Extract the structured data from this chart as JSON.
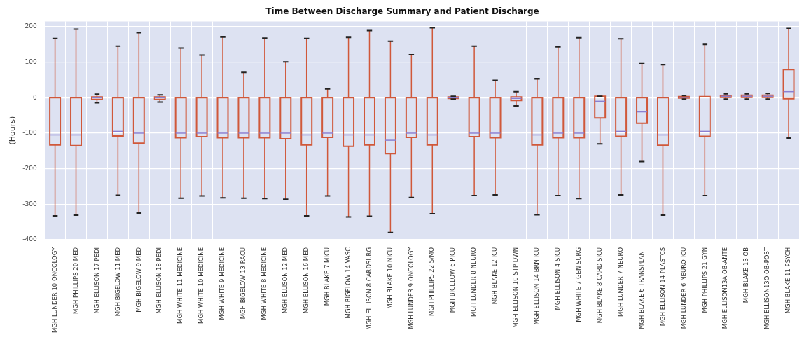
{
  "chart_data": {
    "type": "box",
    "title": "Time Between Discharge Summary and Patient Discharge",
    "ylabel": "(Hours)",
    "categories": [
      "MGH LUNDER 10 ONCOLOGY",
      "MGH PHILLIPS 20 MED",
      "MGH ELLISON 17 PEDI",
      "MGH BIGELOW 11 MED",
      "MGH BIGELOW 9 MED",
      "MGH ELLISON 18 PEDI",
      "MGH WHITE 11 MEDICINE",
      "MGH WHITE 10 MEDICINE",
      "MGH WHITE 9 MEDICINE",
      "MGH BIGELOW 13 RACU",
      "MGH WHITE 8 MEDICINE",
      "MGH ELLISON 12 MED",
      "MGH ELLISON 16 MED",
      "MGH BLAKE 7 MICU",
      "MGH BIGELOW 14 VASC",
      "MGH ELLISON 8 CARDSURG",
      "MGH BLAKE 10 NICU",
      "MGH LUNDER 9 ONCOLOGY",
      "MGH PHILLIPS 22 S/MO",
      "MGH BIGELOW 6 PICU",
      "MGH LUNDER 8 NEURO",
      "MGH BLAKE 12 ICU",
      "MGH ELLISON 10 STP DWN",
      "MGH ELLISON 14 BRN ICU",
      "MGH ELLISON 4 SICU",
      "MGH WHITE 7 GEN SURG",
      "MGH BLAKE 8 CARD SICU",
      "MGH LUNDER 7 NEURO",
      "MGH BLAKE 6 TRANSPLANT",
      "MGH ELLISON 14 PLASTCS",
      "MGH LUNDER 6 NEURO ICU",
      "MGH PHILLIPS 21 GYN",
      "MGH ELLISON13A OB-ANTE",
      "MGH BLAKE 13 OB",
      "MGH ELLISON13O OB-POST",
      "MGH BLAKE 11 PSYCH"
    ],
    "boxes": [
      {
        "low": -333,
        "q1": -133,
        "median": -105,
        "q3": 0,
        "high": 167
      },
      {
        "low": -331,
        "q1": -135,
        "median": -105,
        "q3": 0,
        "high": 193
      },
      {
        "low": -14,
        "q1": -5,
        "median": 0,
        "q3": 2,
        "high": 10
      },
      {
        "low": -275,
        "q1": -108,
        "median": -95,
        "q3": 0,
        "high": 145
      },
      {
        "low": -325,
        "q1": -128,
        "median": -100,
        "q3": 0,
        "high": 183
      },
      {
        "low": -12,
        "q1": -5,
        "median": 0,
        "q3": 2,
        "high": 8
      },
      {
        "low": -283,
        "q1": -113,
        "median": -100,
        "q3": 0,
        "high": 140
      },
      {
        "low": -277,
        "q1": -110,
        "median": -100,
        "q3": 0,
        "high": 120
      },
      {
        "low": -282,
        "q1": -113,
        "median": -100,
        "q3": 0,
        "high": 171
      },
      {
        "low": -283,
        "q1": -113,
        "median": -100,
        "q3": 0,
        "high": 71
      },
      {
        "low": -284,
        "q1": -113,
        "median": -100,
        "q3": 0,
        "high": 168
      },
      {
        "low": -286,
        "q1": -116,
        "median": -100,
        "q3": 0,
        "high": 101
      },
      {
        "low": -333,
        "q1": -133,
        "median": -105,
        "q3": 0,
        "high": 167
      },
      {
        "low": -277,
        "q1": -112,
        "median": -100,
        "q3": 0,
        "high": 25
      },
      {
        "low": -336,
        "q1": -137,
        "median": -105,
        "q3": 0,
        "high": 170
      },
      {
        "low": -334,
        "q1": -133,
        "median": -105,
        "q3": 0,
        "high": 189
      },
      {
        "low": -380,
        "q1": -158,
        "median": -120,
        "q3": 0,
        "high": 159
      },
      {
        "low": -281,
        "q1": -112,
        "median": -100,
        "q3": 0,
        "high": 121
      },
      {
        "low": -327,
        "q1": -133,
        "median": -105,
        "q3": 0,
        "high": 197
      },
      {
        "low": -4,
        "q1": -2,
        "median": 0,
        "q3": 2,
        "high": 4
      },
      {
        "low": -276,
        "q1": -110,
        "median": -100,
        "q3": 0,
        "high": 145
      },
      {
        "low": -274,
        "q1": -113,
        "median": -100,
        "q3": 0,
        "high": 49
      },
      {
        "low": -23,
        "q1": -8,
        "median": -2,
        "q3": 2,
        "high": 17
      },
      {
        "low": -330,
        "q1": -133,
        "median": -105,
        "q3": 0,
        "high": 53
      },
      {
        "low": -276,
        "q1": -113,
        "median": -100,
        "q3": 0,
        "high": 143
      },
      {
        "low": -284,
        "q1": -113,
        "median": -100,
        "q3": 0,
        "high": 169
      },
      {
        "low": -130,
        "q1": -57,
        "median": -10,
        "q3": 4,
        "high": 4
      },
      {
        "low": -274,
        "q1": -109,
        "median": -95,
        "q3": 0,
        "high": 166
      },
      {
        "low": -180,
        "q1": -72,
        "median": -40,
        "q3": 0,
        "high": 96
      },
      {
        "low": -331,
        "q1": -134,
        "median": -105,
        "q3": 0,
        "high": 93
      },
      {
        "low": -4,
        "q1": -1,
        "median": 1,
        "q3": 3,
        "high": 6
      },
      {
        "low": -276,
        "q1": -109,
        "median": -95,
        "q3": 3,
        "high": 150
      },
      {
        "low": -4,
        "q1": 1,
        "median": 4,
        "q3": 6,
        "high": 11
      },
      {
        "low": -4,
        "q1": 1,
        "median": 4,
        "q3": 7,
        "high": 11
      },
      {
        "low": -4,
        "q1": 1,
        "median": 4,
        "q3": 7,
        "high": 12
      },
      {
        "low": -114,
        "q1": -3,
        "median": 17,
        "q3": 79,
        "high": 195
      }
    ],
    "color": "#d0583a",
    "ylim": [
      -400,
      215
    ],
    "yticks": [
      -400,
      -300,
      -200,
      -100,
      0,
      100,
      200
    ],
    "grid": true
  }
}
